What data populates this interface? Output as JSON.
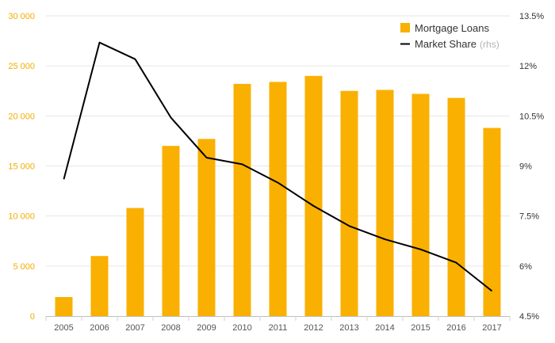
{
  "chart_data": {
    "type": "bar",
    "categories": [
      "2005",
      "2006",
      "2007",
      "2008",
      "2009",
      "2010",
      "2011",
      "2012",
      "2013",
      "2014",
      "2015",
      "2016",
      "2017"
    ],
    "series": [
      {
        "name": "Mortgage Loans",
        "type": "bar",
        "axis": "left",
        "color": "#f9b000",
        "values": [
          1900,
          6000,
          10800,
          17000,
          17700,
          23200,
          23400,
          24000,
          22500,
          22600,
          22200,
          21800,
          18800
        ]
      },
      {
        "name": "Market Share",
        "name_note": "(rhs)",
        "type": "line",
        "axis": "right",
        "color": "#000000",
        "values": [
          8.6,
          12.7,
          12.2,
          10.45,
          9.25,
          9.05,
          8.5,
          7.8,
          7.2,
          6.8,
          6.5,
          6.1,
          5.25
        ]
      }
    ],
    "y_left": {
      "ylim": [
        0,
        30000
      ],
      "ticks": [
        0,
        5000,
        10000,
        15000,
        20000,
        25000,
        30000
      ],
      "tick_labels": [
        "0",
        "5 000",
        "10 000",
        "15 000",
        "20 000",
        "25 000",
        "30 000"
      ],
      "color": "#f2ad00"
    },
    "y_right": {
      "ylim": [
        4.5,
        13.5
      ],
      "ticks": [
        4.5,
        6,
        7.5,
        9,
        10.5,
        12,
        13.5
      ],
      "tick_labels": [
        "4.5%",
        "6%",
        "7.5%",
        "9%",
        "10.5%",
        "12%",
        "13.5%"
      ]
    },
    "grid": true,
    "legend": "top-right",
    "title": "",
    "xlabel": "",
    "ylabel": ""
  }
}
